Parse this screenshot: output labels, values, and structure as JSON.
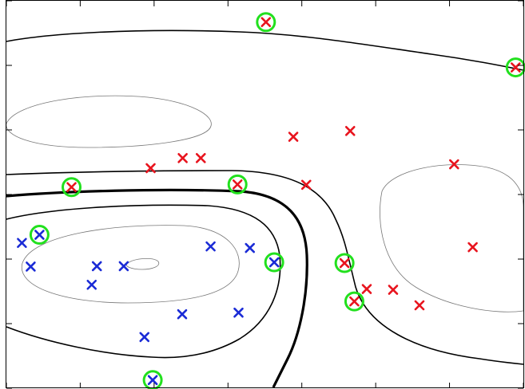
{
  "chart_data": {
    "type": "scatter",
    "title": "",
    "xlabel": "",
    "ylabel": "",
    "xlim": [
      0,
      1
    ],
    "ylim": [
      0,
      1
    ],
    "grid": false,
    "colors": {
      "class_a": "#e8141e",
      "class_b": "#1a2bd6",
      "support_vector_ring": "#22e01e",
      "boundary": "#000000",
      "margin_contour": "#000000",
      "inner_contour": "#777777"
    },
    "series": [
      {
        "class": "a",
        "points": [
          [
            0.502,
            0.945
          ],
          [
            0.985,
            0.828
          ],
          [
            0.126,
            0.519
          ],
          [
            0.279,
            0.568
          ],
          [
            0.341,
            0.594
          ],
          [
            0.376,
            0.594
          ],
          [
            0.447,
            0.526
          ],
          [
            0.555,
            0.649
          ],
          [
            0.58,
            0.525
          ],
          [
            0.665,
            0.664
          ],
          [
            0.866,
            0.578
          ],
          [
            0.654,
            0.323
          ],
          [
            0.673,
            0.224
          ],
          [
            0.697,
            0.256
          ],
          [
            0.748,
            0.254
          ],
          [
            0.799,
            0.214
          ],
          [
            0.902,
            0.364
          ]
        ]
      },
      {
        "class": "b",
        "points": [
          [
            0.064,
            0.396
          ],
          [
            0.03,
            0.375
          ],
          [
            0.047,
            0.314
          ],
          [
            0.175,
            0.315
          ],
          [
            0.227,
            0.315
          ],
          [
            0.165,
            0.267
          ],
          [
            0.395,
            0.366
          ],
          [
            0.471,
            0.362
          ],
          [
            0.518,
            0.325
          ],
          [
            0.34,
            0.191
          ],
          [
            0.449,
            0.195
          ],
          [
            0.267,
            0.132
          ],
          [
            0.283,
            0.021
          ]
        ]
      }
    ],
    "support_vectors": [
      [
        0.502,
        0.945
      ],
      [
        0.985,
        0.828
      ],
      [
        0.126,
        0.519
      ],
      [
        0.447,
        0.526
      ],
      [
        0.654,
        0.323
      ],
      [
        0.673,
        0.224
      ],
      [
        0.064,
        0.396
      ],
      [
        0.518,
        0.325
      ],
      [
        0.283,
        0.021
      ]
    ],
    "x_ticks": [
      0.0,
      0.1428,
      0.2857,
      0.4286,
      0.5714,
      0.7143,
      0.8571,
      1.0
    ],
    "y_ticks": [
      0.0,
      0.1667,
      0.3333,
      0.5,
      0.6667,
      0.8333,
      1.0
    ]
  }
}
